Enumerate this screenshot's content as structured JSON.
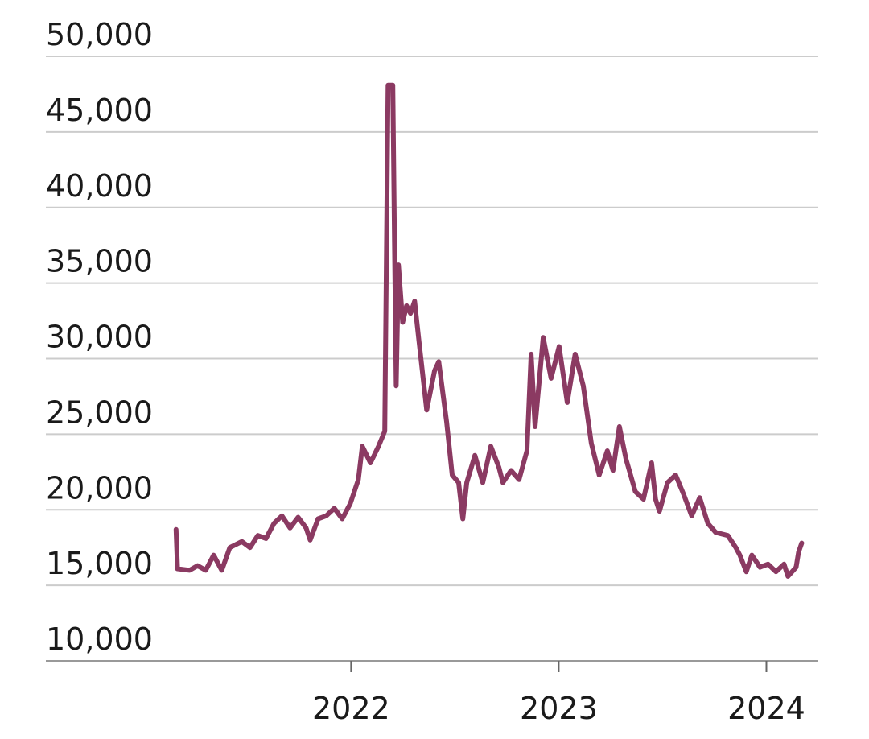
{
  "chart_data": {
    "type": "line",
    "x": [
      2021.157,
      2021.164,
      2021.222,
      2021.261,
      2021.3,
      2021.338,
      2021.377,
      2021.416,
      2021.474,
      2021.513,
      2021.551,
      2021.59,
      2021.629,
      2021.667,
      2021.706,
      2021.745,
      2021.783,
      2021.803,
      2021.841,
      2021.88,
      2021.919,
      2021.957,
      2021.996,
      2022.035,
      2022.054,
      2022.093,
      2022.132,
      2022.162,
      2022.178,
      2022.201,
      2022.209,
      2022.217,
      2022.228,
      2022.248,
      2022.267,
      2022.286,
      2022.306,
      2022.325,
      2022.364,
      2022.402,
      2022.422,
      2022.46,
      2022.487,
      2022.518,
      2022.538,
      2022.557,
      2022.596,
      2022.634,
      2022.673,
      2022.712,
      2022.731,
      2022.77,
      2022.809,
      2022.847,
      2022.867,
      2022.886,
      2022.925,
      2022.963,
      2023.002,
      2023.041,
      2023.079,
      2023.118,
      2023.157,
      2023.195,
      2023.234,
      2023.261,
      2023.292,
      2023.323,
      2023.369,
      2023.408,
      2023.447,
      2023.466,
      2023.485,
      2023.524,
      2023.563,
      2023.602,
      2023.64,
      2023.679,
      2023.718,
      2023.756,
      2023.814,
      2023.853,
      2023.872,
      2023.903,
      2023.93,
      2023.969,
      2024.008,
      2024.046,
      2024.085,
      2024.104,
      2024.143,
      2024.155,
      2024.17
    ],
    "series": [
      {
        "color": "#8b3a62",
        "values": [
          18700,
          16100,
          16000,
          16300,
          16000,
          17000,
          16000,
          17500,
          17900,
          17500,
          18300,
          18100,
          19100,
          19600,
          18800,
          19500,
          18800,
          18000,
          19400,
          19600,
          20100,
          19400,
          20400,
          22000,
          24200,
          23100,
          24200,
          25200,
          48100,
          48100,
          37700,
          28200,
          36200,
          32400,
          33500,
          33000,
          33800,
          31400,
          26600,
          29200,
          29800,
          25800,
          22300,
          21800,
          19400,
          21800,
          23600,
          21800,
          24200,
          22800,
          21800,
          22600,
          22000,
          23900,
          30300,
          25500,
          31400,
          28700,
          30800,
          27100,
          30300,
          28200,
          24400,
          22300,
          23900,
          22600,
          25500,
          23400,
          21200,
          20700,
          23100,
          20700,
          19900,
          21800,
          22300,
          21000,
          19600,
          20800,
          19100,
          18500,
          18300,
          17500,
          17000,
          15900,
          17000,
          16200,
          16400,
          15900,
          16400,
          15600,
          16200,
          17200,
          17800
        ]
      }
    ],
    "xlim": [
      2020.53,
      2024.25
    ],
    "xticks": [
      2022,
      2023,
      2024
    ],
    "ylim": [
      10000,
      50000
    ],
    "yticks": [
      {
        "value": 10000,
        "label": "10,000"
      },
      {
        "value": 15000,
        "label": "15,000"
      },
      {
        "value": 20000,
        "label": "20,000"
      },
      {
        "value": 25000,
        "label": "25,000"
      },
      {
        "value": 30000,
        "label": "30,000"
      },
      {
        "value": 35000,
        "label": "35,000"
      },
      {
        "value": 40000,
        "label": "40,000"
      },
      {
        "value": 45000,
        "label": "45,000"
      },
      {
        "value": 50000,
        "label": "50,000"
      }
    ],
    "grid": true
  }
}
